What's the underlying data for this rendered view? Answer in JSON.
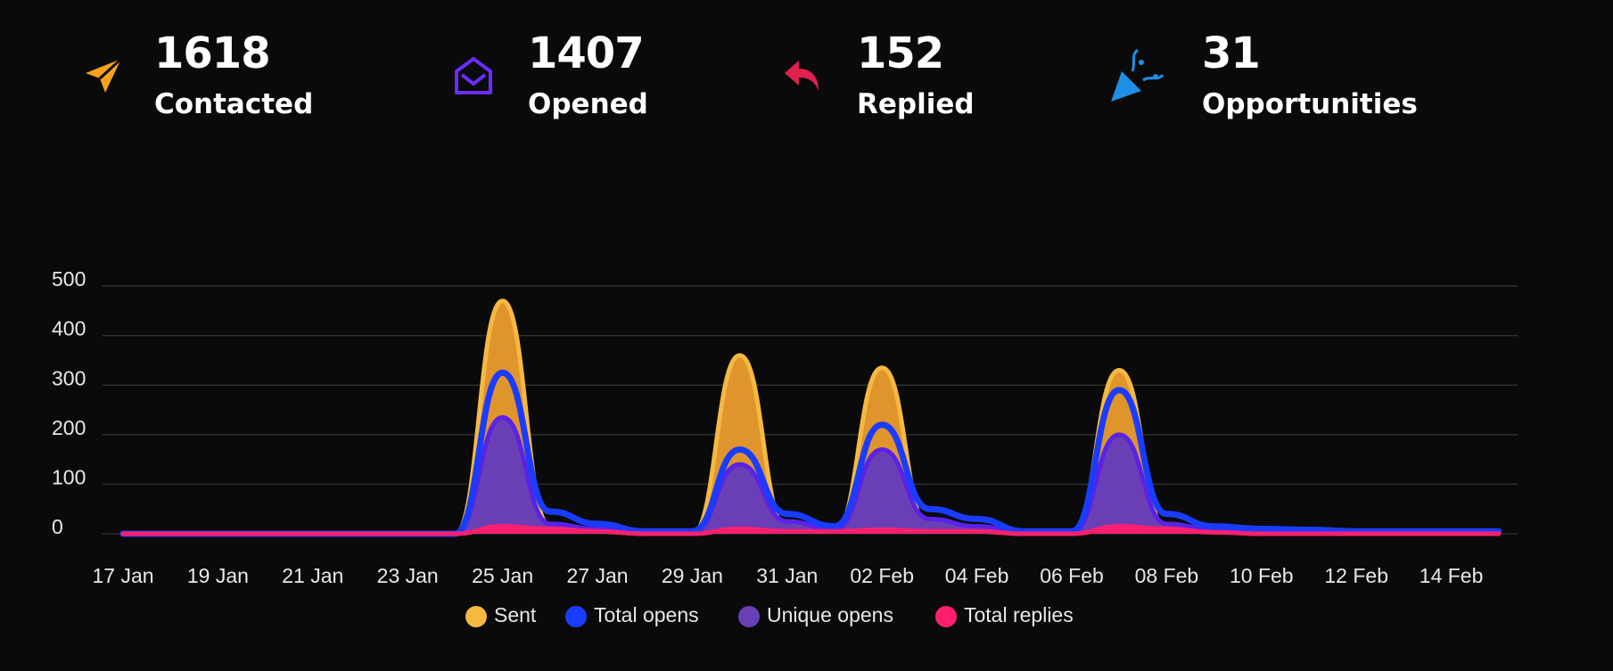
{
  "stats": [
    {
      "value": 1618,
      "label": "Contacted"
    },
    {
      "value": 1407,
      "label": "Opened"
    },
    {
      "value": 152,
      "label": "Replied"
    },
    {
      "value": 31,
      "label": "Opportunities"
    }
  ],
  "chart_data": {
    "type": "area",
    "categories": [
      "17 Jan",
      null,
      "19 Jan",
      null,
      "21 Jan",
      null,
      "23 Jan",
      null,
      "25 Jan",
      null,
      "27 Jan",
      null,
      "29 Jan",
      null,
      "31 Jan",
      null,
      "02 Feb",
      null,
      "04 Feb",
      null,
      "06 Feb",
      null,
      "08 Feb",
      null,
      "10 Feb",
      null,
      "12 Feb",
      null,
      "14 Feb",
      null
    ],
    "series": [
      {
        "name": "Sent",
        "color": "#f5b942",
        "values": [
          0,
          0,
          0,
          0,
          0,
          0,
          0,
          0,
          470,
          15,
          5,
          0,
          0,
          360,
          10,
          5,
          335,
          10,
          5,
          0,
          0,
          330,
          10,
          5,
          0,
          0,
          0,
          0,
          0,
          0
        ]
      },
      {
        "name": "Total opens",
        "color": "#1a3cff",
        "values": [
          0,
          0,
          0,
          0,
          0,
          0,
          0,
          0,
          325,
          45,
          20,
          5,
          5,
          170,
          40,
          15,
          220,
          50,
          30,
          5,
          5,
          290,
          40,
          15,
          10,
          8,
          5,
          5,
          5,
          5
        ]
      },
      {
        "name": "Unique opens",
        "color": "#6a3fb5",
        "values": [
          0,
          0,
          0,
          0,
          0,
          0,
          0,
          0,
          235,
          20,
          10,
          3,
          3,
          140,
          25,
          8,
          170,
          30,
          15,
          2,
          2,
          200,
          20,
          8,
          5,
          4,
          3,
          3,
          3,
          3
        ]
      },
      {
        "name": "Total replies",
        "color": "#ff1f6e",
        "values": [
          0,
          0,
          0,
          0,
          0,
          0,
          0,
          0,
          15,
          10,
          5,
          0,
          0,
          10,
          5,
          5,
          8,
          5,
          5,
          0,
          0,
          15,
          10,
          3,
          0,
          0,
          0,
          0,
          0,
          0
        ]
      }
    ],
    "ylim": [
      0,
      500
    ],
    "yticks": [
      0,
      100,
      200,
      300,
      400,
      500
    ],
    "grid": true
  }
}
